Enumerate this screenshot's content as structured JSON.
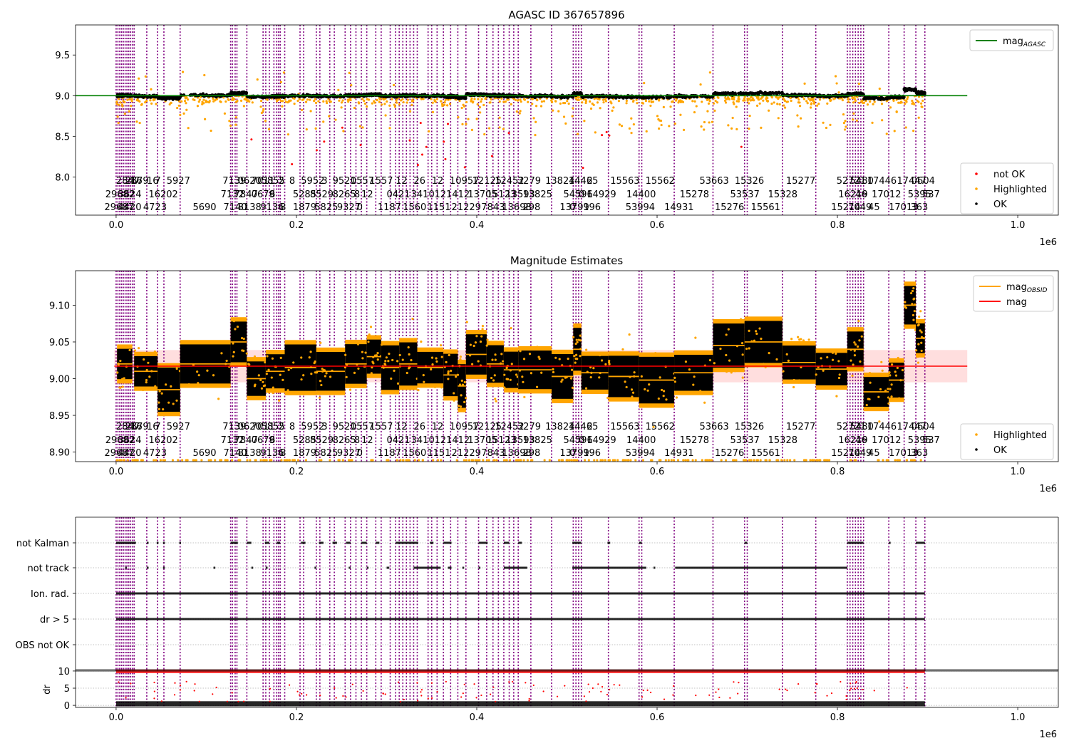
{
  "figure": {
    "scale_label": "1e6",
    "x_ticks": [
      0.0,
      0.2,
      0.4,
      0.6,
      0.8,
      1.0
    ],
    "obs_boundaries": [
      0.0,
      0.002,
      0.004,
      0.006,
      0.008,
      0.01,
      0.012,
      0.014,
      0.016,
      0.018,
      0.02,
      0.034,
      0.046,
      0.053,
      0.071,
      0.127,
      0.129,
      0.132,
      0.134,
      0.145,
      0.163,
      0.166,
      0.17,
      0.175,
      0.178,
      0.18,
      0.182,
      0.187,
      0.204,
      0.208,
      0.222,
      0.226,
      0.237,
      0.242,
      0.254,
      0.26,
      0.266,
      0.272,
      0.278,
      0.288,
      0.294,
      0.304,
      0.31,
      0.314,
      0.318,
      0.322,
      0.326,
      0.33,
      0.334,
      0.346,
      0.35,
      0.356,
      0.363,
      0.371,
      0.379,
      0.388,
      0.402,
      0.411,
      0.418,
      0.424,
      0.43,
      0.436,
      0.441,
      0.446,
      0.46,
      0.483,
      0.507,
      0.51,
      0.513,
      0.516,
      0.546,
      0.58,
      0.583,
      0.619,
      0.662,
      0.697,
      0.7,
      0.739,
      0.776,
      0.811,
      0.814,
      0.817,
      0.82,
      0.823,
      0.826,
      0.829,
      0.857,
      0.874,
      0.887,
      0.897
    ]
  },
  "chart_data": [
    {
      "type": "scatter",
      "title": "AGASC ID 367657896",
      "xlabel": "",
      "ylabel": "",
      "xlim": [
        -0.045,
        1.045
      ],
      "ylim": [
        7.53,
        9.87
      ],
      "y_ticks": [
        8.0,
        8.5,
        9.0,
        9.5
      ],
      "y_tick_labels": [
        "8.0",
        "8.5",
        "9.0",
        "9.5"
      ],
      "reference_line": {
        "name": "mag_AGASC",
        "value": 9.0,
        "x_range": [
          -0.045,
          0.944
        ],
        "color": "#008000"
      },
      "series": [
        {
          "name": "not OK",
          "color": "#ff0000"
        },
        {
          "name": "Highlighted",
          "color": "#ffa500"
        },
        {
          "name": "OK",
          "color": "#000000"
        }
      ],
      "obsid_labels": [
        {
          "x": 0.0,
          "row": 0,
          "text": "2847"
        },
        {
          "x": 0.01,
          "row": 0,
          "text": "2879"
        },
        {
          "x": 0.016,
          "row": 0,
          "text": "16"
        },
        {
          "x": 0.034,
          "row": 0,
          "text": "16"
        },
        {
          "x": 0.043,
          "row": 0,
          "text": "7"
        },
        {
          "x": 0.056,
          "row": 0,
          "text": "5927"
        },
        {
          "x": 0.118,
          "row": 0,
          "text": "7139"
        },
        {
          "x": 0.135,
          "row": 0,
          "text": "0620"
        },
        {
          "x": 0.15,
          "row": 0,
          "text": "7011"
        },
        {
          "x": 0.161,
          "row": 0,
          "text": "5855"
        },
        {
          "x": 0.18,
          "row": 0,
          "text": "2"
        },
        {
          "x": 0.192,
          "row": 0,
          "text": "8"
        },
        {
          "x": 0.205,
          "row": 0,
          "text": "5952"
        },
        {
          "x": 0.228,
          "row": 0,
          "text": "3"
        },
        {
          "x": 0.24,
          "row": 0,
          "text": "9521"
        },
        {
          "x": 0.26,
          "row": 0,
          "text": "0557"
        },
        {
          "x": 0.281,
          "row": 0,
          "text": "1557"
        },
        {
          "x": 0.31,
          "row": 0,
          "text": "12"
        },
        {
          "x": 0.33,
          "row": 0,
          "text": "26"
        },
        {
          "x": 0.35,
          "row": 0,
          "text": "12"
        },
        {
          "x": 0.37,
          "row": 0,
          "text": "10957"
        },
        {
          "x": 0.395,
          "row": 0,
          "text": "12125"
        },
        {
          "x": 0.42,
          "row": 0,
          "text": "12452"
        },
        {
          "x": 0.445,
          "row": 0,
          "text": "3279"
        },
        {
          "x": 0.476,
          "row": 0,
          "text": "13824"
        },
        {
          "x": 0.502,
          "row": 0,
          "text": "14465"
        },
        {
          "x": 0.522,
          "row": 0,
          "text": "2"
        },
        {
          "x": 0.548,
          "row": 0,
          "text": "15563"
        },
        {
          "x": 0.587,
          "row": 0,
          "text": "15562"
        },
        {
          "x": 0.647,
          "row": 0,
          "text": "53663"
        },
        {
          "x": 0.686,
          "row": 0,
          "text": "15326"
        },
        {
          "x": 0.743,
          "row": 0,
          "text": "15277"
        },
        {
          "x": 0.799,
          "row": 0,
          "text": "52721"
        },
        {
          "x": 0.814,
          "row": 0,
          "text": "5480"
        },
        {
          "x": 0.833,
          "row": 0,
          "text": "17446"
        },
        {
          "x": 0.866,
          "row": 0,
          "text": "17447"
        },
        {
          "x": 0.882,
          "row": 0,
          "text": "0604"
        },
        {
          "x": -0.012,
          "row": 1,
          "text": "29682"
        },
        {
          "x": 0.002,
          "row": 1,
          "text": "3624"
        },
        {
          "x": 0.036,
          "row": 1,
          "text": "16202"
        },
        {
          "x": 0.116,
          "row": 1,
          "text": "7132"
        },
        {
          "x": 0.131,
          "row": 1,
          "text": "7847"
        },
        {
          "x": 0.15,
          "row": 1,
          "text": "0679"
        },
        {
          "x": 0.17,
          "row": 1,
          "text": "6"
        },
        {
          "x": 0.196,
          "row": 1,
          "text": "5285"
        },
        {
          "x": 0.215,
          "row": 1,
          "text": "8529"
        },
        {
          "x": 0.24,
          "row": 1,
          "text": "8265"
        },
        {
          "x": 0.264,
          "row": 1,
          "text": "8"
        },
        {
          "x": 0.272,
          "row": 1,
          "text": "12"
        },
        {
          "x": 0.3,
          "row": 1,
          "text": "0421"
        },
        {
          "x": 0.327,
          "row": 1,
          "text": "3410"
        },
        {
          "x": 0.353,
          "row": 1,
          "text": "121412"
        },
        {
          "x": 0.39,
          "row": 1,
          "text": "13705"
        },
        {
          "x": 0.411,
          "row": 1,
          "text": "15123"
        },
        {
          "x": 0.432,
          "row": 1,
          "text": "13593"
        },
        {
          "x": 0.451,
          "row": 1,
          "text": "13825"
        },
        {
          "x": 0.496,
          "row": 1,
          "text": "54596"
        },
        {
          "x": 0.513,
          "row": 1,
          "text": "0"
        },
        {
          "x": 0.522,
          "row": 1,
          "text": "14929"
        },
        {
          "x": 0.566,
          "row": 1,
          "text": "14400"
        },
        {
          "x": 0.625,
          "row": 1,
          "text": "15278"
        },
        {
          "x": 0.681,
          "row": 1,
          "text": "53537"
        },
        {
          "x": 0.723,
          "row": 1,
          "text": "15328"
        },
        {
          "x": 0.801,
          "row": 1,
          "text": "16219"
        },
        {
          "x": 0.82,
          "row": 1,
          "text": "46"
        },
        {
          "x": 0.838,
          "row": 1,
          "text": "17012"
        },
        {
          "x": 0.878,
          "row": 1,
          "text": "5395"
        },
        {
          "x": 0.894,
          "row": 1,
          "text": "537"
        },
        {
          "x": -0.013,
          "row": 2,
          "text": "29687"
        },
        {
          "x": 0.002,
          "row": 2,
          "text": "4420"
        },
        {
          "x": 0.03,
          "row": 2,
          "text": "4723"
        },
        {
          "x": 0.085,
          "row": 2,
          "text": "5690"
        },
        {
          "x": 0.119,
          "row": 2,
          "text": "7140"
        },
        {
          "x": 0.135,
          "row": 2,
          "text": "8138"
        },
        {
          "x": 0.16,
          "row": 2,
          "text": "9136"
        },
        {
          "x": 0.182,
          "row": 2,
          "text": "8"
        },
        {
          "x": 0.196,
          "row": 2,
          "text": "1879"
        },
        {
          "x": 0.22,
          "row": 2,
          "text": "5825"
        },
        {
          "x": 0.245,
          "row": 2,
          "text": "9327"
        },
        {
          "x": 0.267,
          "row": 2,
          "text": "0"
        },
        {
          "x": 0.29,
          "row": 2,
          "text": "1187"
        },
        {
          "x": 0.318,
          "row": 2,
          "text": "1560"
        },
        {
          "x": 0.345,
          "row": 2,
          "text": "1151"
        },
        {
          "x": 0.372,
          "row": 2,
          "text": "21229"
        },
        {
          "x": 0.405,
          "row": 2,
          "text": "7843"
        },
        {
          "x": 0.428,
          "row": 2,
          "text": "13698"
        },
        {
          "x": 0.451,
          "row": 2,
          "text": "298"
        },
        {
          "x": 0.492,
          "row": 2,
          "text": "13799"
        },
        {
          "x": 0.503,
          "row": 2,
          "text": "0"
        },
        {
          "x": 0.518,
          "row": 2,
          "text": "196"
        },
        {
          "x": 0.565,
          "row": 2,
          "text": "53994"
        },
        {
          "x": 0.608,
          "row": 2,
          "text": "14931"
        },
        {
          "x": 0.664,
          "row": 2,
          "text": "15276"
        },
        {
          "x": 0.704,
          "row": 2,
          "text": "15561"
        },
        {
          "x": 0.793,
          "row": 2,
          "text": "15214"
        },
        {
          "x": 0.812,
          "row": 2,
          "text": "7049"
        },
        {
          "x": 0.834,
          "row": 2,
          "text": "45"
        },
        {
          "x": 0.857,
          "row": 2,
          "text": "17013"
        },
        {
          "x": 0.881,
          "row": 2,
          "text": "363"
        }
      ]
    },
    {
      "type": "scatter",
      "title": "Magnitude Estimates",
      "xlabel": "",
      "ylabel": "",
      "xlim": [
        -0.045,
        1.045
      ],
      "ylim": [
        8.887,
        9.147
      ],
      "y_ticks": [
        8.9,
        8.95,
        9.0,
        9.05,
        9.1
      ],
      "y_tick_labels": [
        "8.90",
        "8.95",
        "9.00",
        "9.05",
        "9.10"
      ],
      "mean_line": {
        "name": "mag",
        "value": 9.017,
        "band": [
          8.995,
          9.039
        ],
        "x_range": [
          -0.002,
          0.944
        ],
        "color": "#ff0000"
      },
      "obsid_mag": {
        "name": "mag_OBSID",
        "color": "#ffa500",
        "segments": [
          {
            "x0": 0.001,
            "x1": 0.018,
            "mag": 9.02
          },
          {
            "x0": 0.02,
            "x1": 0.046,
            "mag": 9.01
          },
          {
            "x0": 0.046,
            "x1": 0.071,
            "mag": 8.985
          },
          {
            "x0": 0.071,
            "x1": 0.127,
            "mag": 9.02
          },
          {
            "x0": 0.127,
            "x1": 0.145,
            "mag": 9.05
          },
          {
            "x0": 0.145,
            "x1": 0.166,
            "mag": 9.0
          },
          {
            "x0": 0.166,
            "x1": 0.187,
            "mag": 9.01
          },
          {
            "x0": 0.187,
            "x1": 0.222,
            "mag": 9.015
          },
          {
            "x0": 0.222,
            "x1": 0.254,
            "mag": 9.01
          },
          {
            "x0": 0.254,
            "x1": 0.278,
            "mag": 9.02
          },
          {
            "x0": 0.278,
            "x1": 0.294,
            "mag": 9.03
          },
          {
            "x0": 0.294,
            "x1": 0.314,
            "mag": 9.015
          },
          {
            "x0": 0.314,
            "x1": 0.334,
            "mag": 9.02
          },
          {
            "x0": 0.334,
            "x1": 0.363,
            "mag": 9.015
          },
          {
            "x0": 0.363,
            "x1": 0.379,
            "mag": 9.005
          },
          {
            "x0": 0.379,
            "x1": 0.388,
            "mag": 8.99
          },
          {
            "x0": 0.388,
            "x1": 0.411,
            "mag": 9.033
          },
          {
            "x0": 0.411,
            "x1": 0.43,
            "mag": 9.02
          },
          {
            "x0": 0.43,
            "x1": 0.446,
            "mag": 9.012
          },
          {
            "x0": 0.446,
            "x1": 0.483,
            "mag": 9.012
          },
          {
            "x0": 0.483,
            "x1": 0.507,
            "mag": 9.003
          },
          {
            "x0": 0.507,
            "x1": 0.516,
            "mag": 9.04
          },
          {
            "x0": 0.516,
            "x1": 0.546,
            "mag": 9.008
          },
          {
            "x0": 0.546,
            "x1": 0.58,
            "mag": 9.003
          },
          {
            "x0": 0.58,
            "x1": 0.619,
            "mag": 8.998
          },
          {
            "x0": 0.619,
            "x1": 0.662,
            "mag": 9.008
          },
          {
            "x0": 0.662,
            "x1": 0.697,
            "mag": 9.045
          },
          {
            "x0": 0.697,
            "x1": 0.739,
            "mag": 9.05
          },
          {
            "x0": 0.739,
            "x1": 0.776,
            "mag": 9.022
          },
          {
            "x0": 0.776,
            "x1": 0.811,
            "mag": 9.013
          },
          {
            "x0": 0.811,
            "x1": 0.829,
            "mag": 9.04
          },
          {
            "x0": 0.829,
            "x1": 0.857,
            "mag": 8.982
          },
          {
            "x0": 0.857,
            "x1": 0.874,
            "mag": 8.998
          },
          {
            "x0": 0.874,
            "x1": 0.887,
            "mag": 9.1
          },
          {
            "x0": 0.887,
            "x1": 0.897,
            "mag": 9.055
          }
        ]
      },
      "series": [
        {
          "name": "Highlighted",
          "color": "#ffa500"
        },
        {
          "name": "OK",
          "color": "#000000"
        }
      ]
    },
    {
      "type": "scatter",
      "title": "",
      "xlabel": "",
      "ylabel": "",
      "xlim": [
        -0.045,
        1.045
      ],
      "categories": [
        "not Kalman",
        "not track",
        "Ion. rad.",
        "dr > 5",
        "OBS not OK"
      ],
      "flag_series": [
        {
          "category": "not Kalman",
          "intervals": [
            [
              0.0,
              0.022
            ],
            [
              0.034,
              0.036
            ],
            [
              0.045,
              0.047
            ],
            [
              0.052,
              0.054
            ],
            [
              0.07,
              0.072
            ],
            [
              0.127,
              0.135
            ],
            [
              0.145,
              0.15
            ],
            [
              0.165,
              0.17
            ],
            [
              0.178,
              0.182
            ],
            [
              0.205,
              0.21
            ],
            [
              0.225,
              0.23
            ],
            [
              0.24,
              0.245
            ],
            [
              0.255,
              0.26
            ],
            [
              0.272,
              0.278
            ],
            [
              0.288,
              0.292
            ],
            [
              0.31,
              0.335
            ],
            [
              0.348,
              0.352
            ],
            [
              0.363,
              0.372
            ],
            [
              0.402,
              0.412
            ],
            [
              0.43,
              0.436
            ],
            [
              0.446,
              0.45
            ],
            [
              0.506,
              0.516
            ],
            [
              0.545,
              0.548
            ],
            [
              0.58,
              0.583
            ],
            [
              0.697,
              0.7
            ],
            [
              0.811,
              0.829
            ],
            [
              0.857,
              0.859
            ],
            [
              0.887,
              0.897
            ]
          ]
        },
        {
          "category": "not track",
          "intervals": [
            [
              0.01,
              0.012
            ],
            [
              0.034,
              0.036
            ],
            [
              0.052,
              0.054
            ],
            [
              0.108,
              0.11
            ],
            [
              0.15,
              0.152
            ],
            [
              0.166,
              0.168
            ],
            [
              0.22,
              0.222
            ],
            [
              0.258,
              0.26
            ],
            [
              0.278,
              0.28
            ],
            [
              0.3,
              0.303
            ],
            [
              0.33,
              0.36
            ],
            [
              0.368,
              0.372
            ],
            [
              0.384,
              0.386
            ],
            [
              0.402,
              0.404
            ],
            [
              0.43,
              0.456
            ],
            [
              0.506,
              0.588
            ],
            [
              0.596,
              0.598
            ],
            [
              0.62,
              0.811
            ]
          ]
        },
        {
          "category": "Ion. rad.",
          "intervals": [
            [
              0.0,
              0.897
            ]
          ]
        },
        {
          "category": "dr > 5",
          "intervals": [
            [
              0.0,
              0.897
            ]
          ]
        },
        {
          "category": "OBS not OK",
          "intervals": []
        }
      ],
      "dr_subplot": {
        "ylabel": "dr",
        "y_ticks": [
          0,
          5,
          10
        ],
        "y_tick_labels": [
          "0",
          "5",
          "10"
        ],
        "ylim": [
          -0.6,
          10.4
        ],
        "threshold_line": 10,
        "series": [
          {
            "name": "not OK",
            "color": "#ff0000",
            "description_value": 10
          },
          {
            "name": "OK",
            "color": "#000000",
            "description_value": 0.5
          }
        ]
      }
    }
  ]
}
